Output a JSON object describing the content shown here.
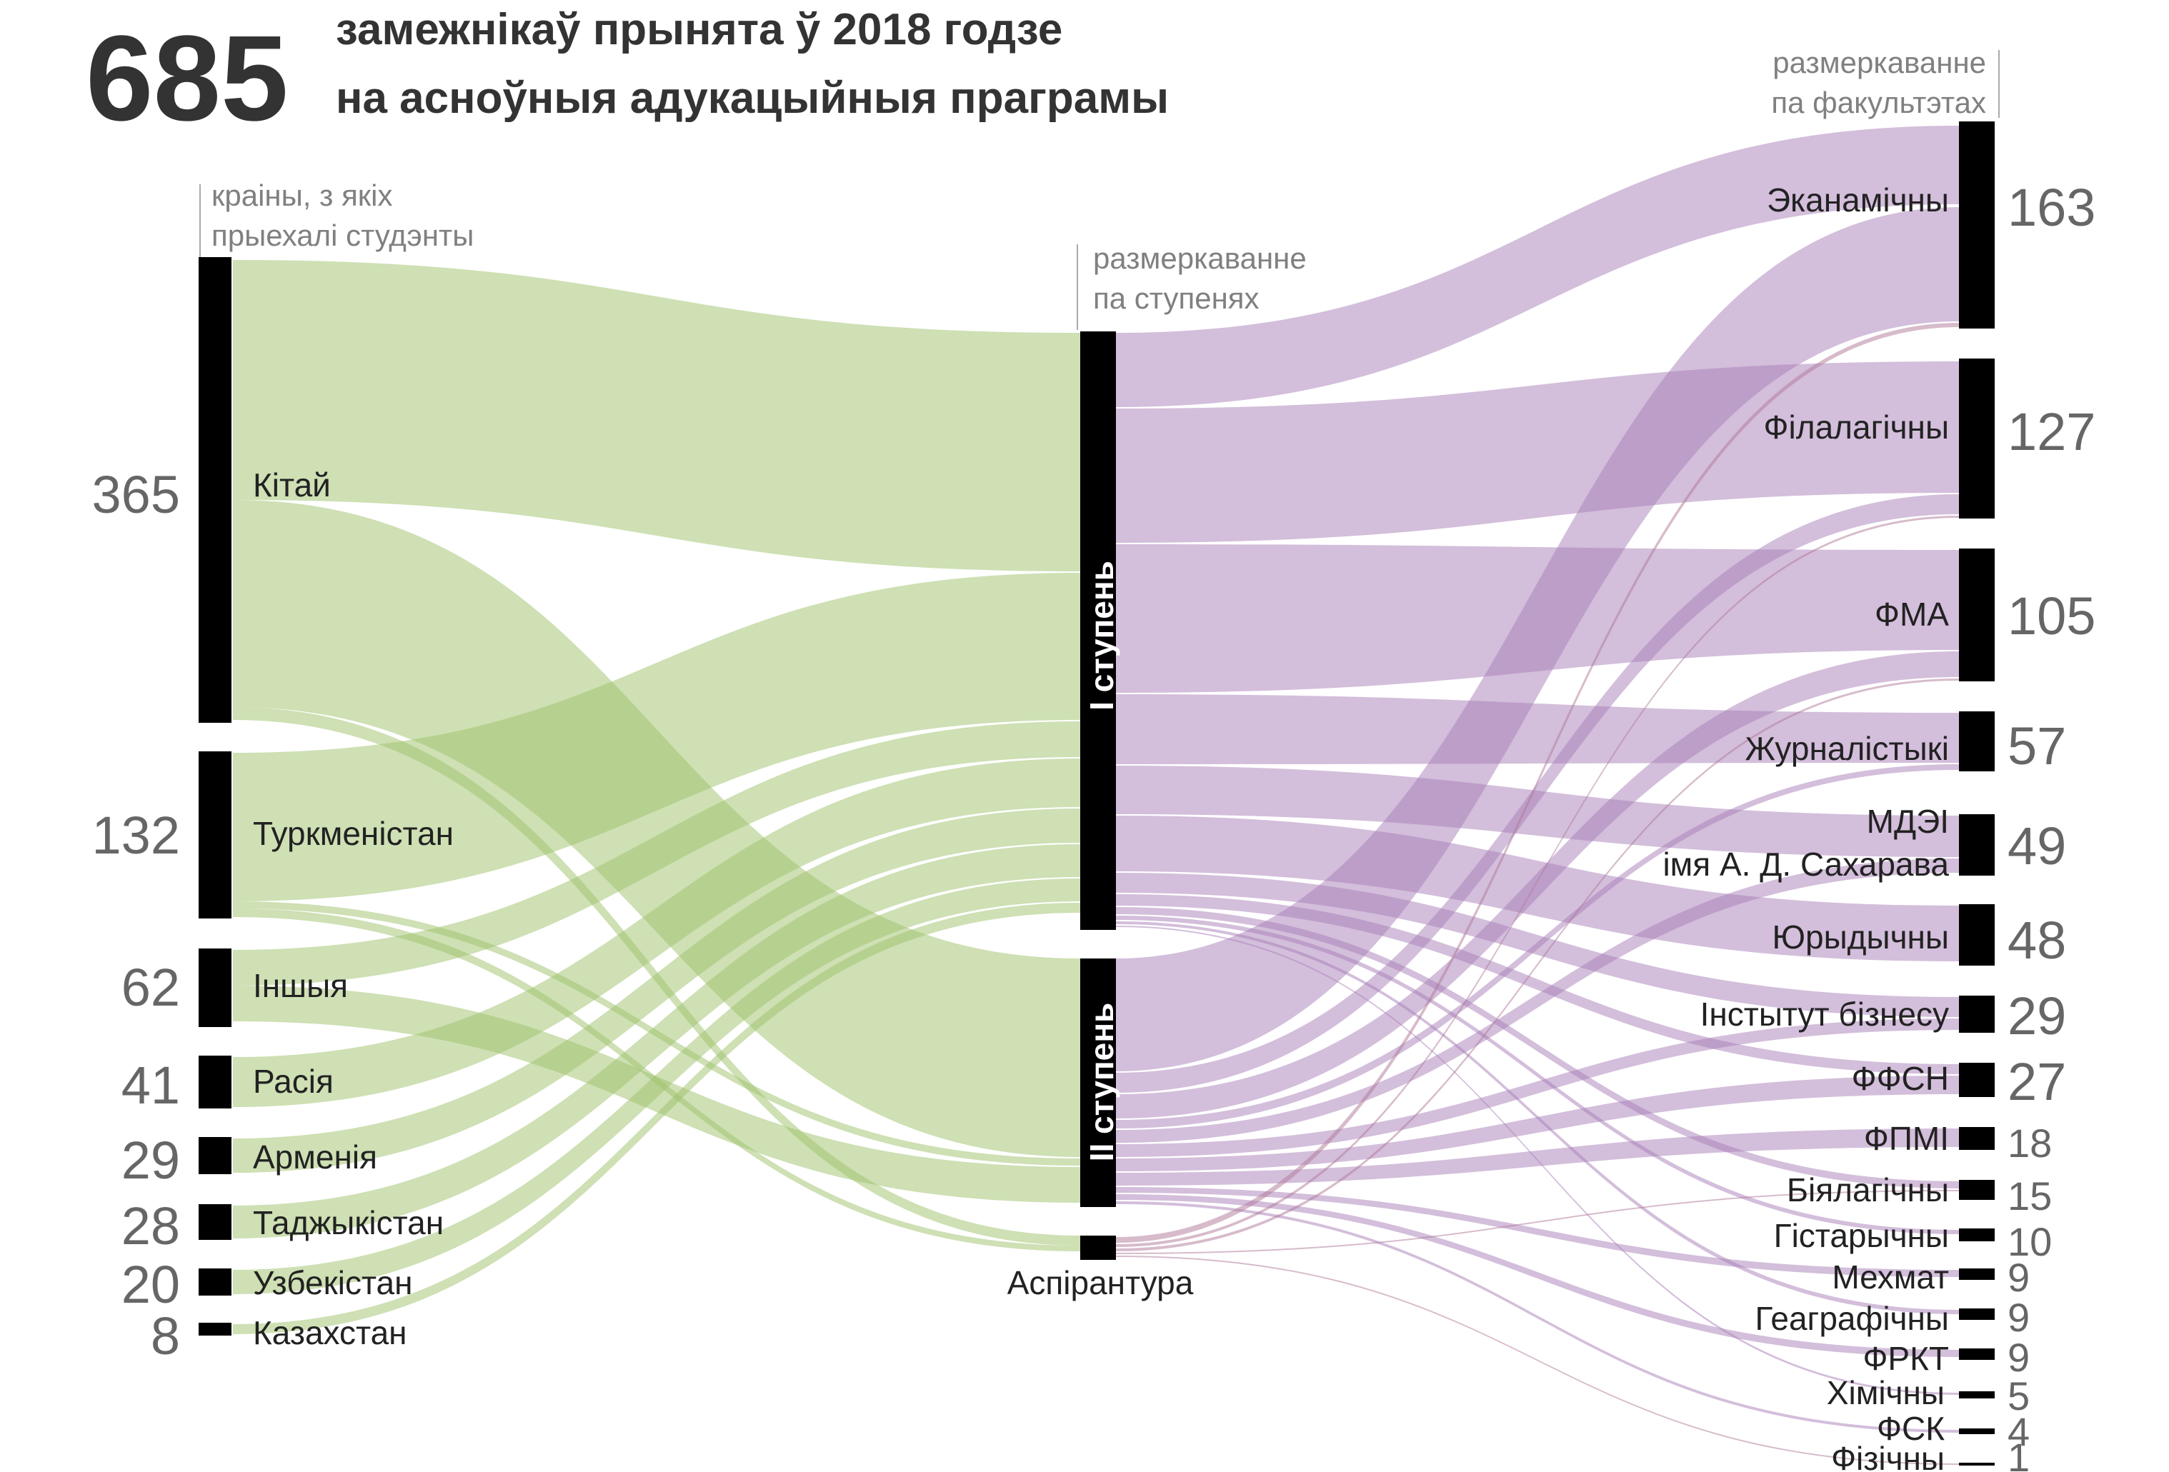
{
  "header": {
    "total": "685",
    "title_line1": "замежнікаў прынята ў 2018 годзе",
    "title_line2": "на асноўныя адукацыйныя праграмы"
  },
  "column_notes": {
    "countries_line1": "краіны, з якіх",
    "countries_line2": "прыехалі студэнты",
    "levels_line1": "размеркаванне",
    "levels_line2": "па ступенях",
    "faculties_line1": "размеркаванне",
    "faculties_line2": "па факультэтах"
  },
  "colors": {
    "left_flow": "#9dc26a",
    "right_flow": "#a77db8",
    "right_flow_aspirantura": "#b07898",
    "node": "#000000",
    "text": "#222222",
    "number": "#666666"
  },
  "countries": [
    {
      "id": "china",
      "label": "Кітай",
      "value": "365"
    },
    {
      "id": "turkmenistan",
      "label": "Туркменістан",
      "value": "132"
    },
    {
      "id": "other",
      "label": "Іншыя",
      "value": "62"
    },
    {
      "id": "russia",
      "label": "Расія",
      "value": "41"
    },
    {
      "id": "armenia",
      "label": "Арменія",
      "value": "29"
    },
    {
      "id": "tajikistan",
      "label": "Таджыкістан",
      "value": "28"
    },
    {
      "id": "uzbekistan",
      "label": "Узбекістан",
      "value": "20"
    },
    {
      "id": "kazakhstan",
      "label": "Казахстан",
      "value": "8"
    }
  ],
  "levels": [
    {
      "id": "level1",
      "label": "I ступень"
    },
    {
      "id": "level2",
      "label": "II ступень"
    },
    {
      "id": "aspirantura",
      "label": "Аспірантура"
    }
  ],
  "faculties": [
    {
      "id": "econ",
      "label": "Эканамічны",
      "value": "163"
    },
    {
      "id": "philol",
      "label": "Філалагічны",
      "value": "127"
    },
    {
      "id": "fma",
      "label": "ФМА",
      "value": "105"
    },
    {
      "id": "journal",
      "label": "Журналістыкі",
      "value": "57"
    },
    {
      "id": "mdei",
      "label": "МДЭІ",
      "label2": "імя А. Д. Сахарава",
      "value": "49"
    },
    {
      "id": "law",
      "label": "Юрыдычны",
      "value": "48"
    },
    {
      "id": "business",
      "label": "Інстытут бізнесу",
      "value": "29"
    },
    {
      "id": "ffsn",
      "label": "ФФСН",
      "value": "27"
    },
    {
      "id": "fpmi",
      "label": "ФПМІ",
      "value": "18"
    },
    {
      "id": "bio",
      "label": "Біялагічны",
      "value": "15"
    },
    {
      "id": "hist",
      "label": "Гістарычны",
      "value": "10"
    },
    {
      "id": "mehmat",
      "label": "Мехмат",
      "value": "9"
    },
    {
      "id": "geo",
      "label": "Геаграфічны",
      "value": "9"
    },
    {
      "id": "frkt",
      "label": "ФРКТ",
      "value": "9"
    },
    {
      "id": "chem",
      "label": "Хімічны",
      "value": "5"
    },
    {
      "id": "fsk",
      "label": "ФСК",
      "value": "4"
    },
    {
      "id": "phys",
      "label": "Фізічны",
      "value": "1"
    }
  ]
}
